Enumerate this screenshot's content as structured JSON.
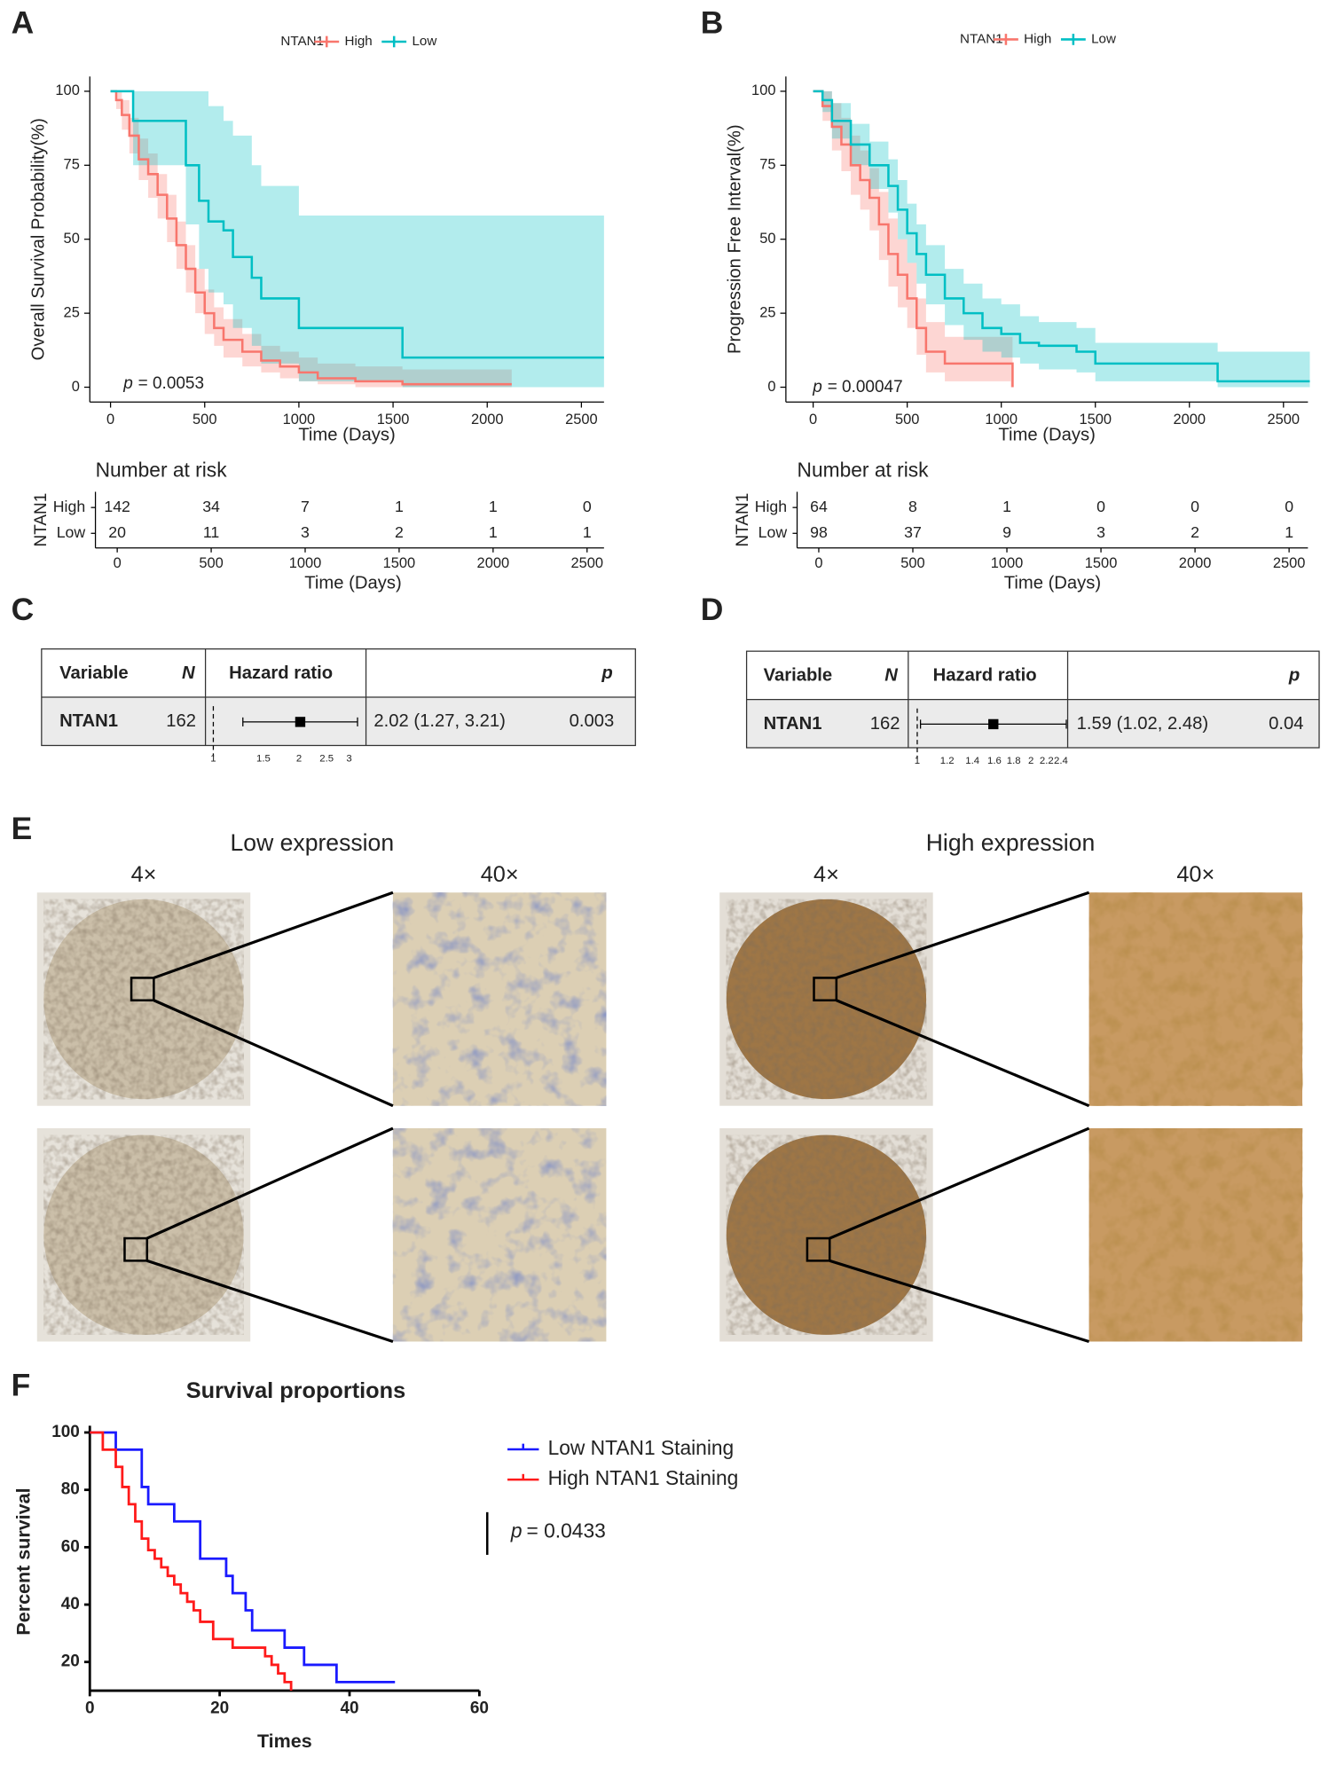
{
  "panel_labels": [
    "A",
    "B",
    "C",
    "D",
    "E",
    "F"
  ],
  "chart_data": [
    {
      "type": "step",
      "xlabel": "Time (Days)",
      "ylabel": "Overall Survival Probability(%)",
      "legend": "top",
      "legend_title": "NTAN1",
      "xlim": [
        -110,
        2620
      ],
      "ylim": [
        -5,
        105
      ],
      "xticks": [
        0,
        500,
        1000,
        1500,
        2000,
        2500
      ],
      "yticks": [
        0,
        25,
        50,
        75,
        100
      ],
      "annotation": {
        "symbol": "p",
        "text": "= 0.0053"
      },
      "series": [
        {
          "name": "High",
          "color": "#F8766D",
          "x": [
            0,
            30,
            60,
            100,
            150,
            200,
            250,
            300,
            350,
            400,
            450,
            500,
            550,
            600,
            700,
            800,
            900,
            1000,
            1100,
            1300,
            1550,
            2130
          ],
          "values": [
            100,
            97,
            92,
            85,
            77,
            72,
            65,
            57,
            48,
            40,
            32,
            25,
            20,
            16,
            12,
            9,
            7,
            5,
            3,
            2,
            1,
            1
          ],
          "ci_upper": [
            100,
            100,
            97,
            91,
            84,
            79,
            72,
            65,
            56,
            48,
            40,
            33,
            27,
            23,
            18,
            14,
            12,
            10,
            8,
            7,
            6,
            6
          ],
          "ci_lower": [
            100,
            94,
            87,
            79,
            70,
            64,
            57,
            49,
            40,
            32,
            25,
            18,
            14,
            10,
            7,
            5,
            3,
            2,
            1,
            0,
            0,
            0
          ]
        },
        {
          "name": "Low",
          "color": "#00BFC4",
          "x": [
            0,
            120,
            400,
            470,
            520,
            600,
            650,
            750,
            800,
            1000,
            1550,
            2620
          ],
          "values": [
            100,
            90,
            75,
            63,
            56,
            53,
            44,
            37,
            30,
            20,
            10,
            10
          ],
          "ci_upper": [
            100,
            100,
            100,
            100,
            95,
            90,
            85,
            75,
            68,
            58,
            58,
            58
          ],
          "ci_lower": [
            100,
            75,
            55,
            40,
            32,
            28,
            20,
            14,
            8,
            2,
            0,
            0
          ]
        }
      ],
      "risk_table": {
        "title": "Number at risk",
        "xlabel": "Time (Days)",
        "ylabel": "NTAN1",
        "times": [
          0,
          500,
          1000,
          1500,
          2000,
          2500
        ],
        "rows": [
          {
            "name": "High",
            "color": "#F8766D",
            "counts": [
              142,
              34,
              7,
              1,
              1,
              0
            ]
          },
          {
            "name": "Low",
            "color": "#00BFC4",
            "counts": [
              20,
              11,
              3,
              2,
              1,
              1
            ]
          }
        ]
      }
    },
    {
      "type": "step",
      "xlabel": "Time (Days)",
      "ylabel": "Progression Free Interval(%)",
      "legend": "top",
      "legend_title": "NTAN1",
      "xlim": [
        -145,
        2630
      ],
      "ylim": [
        -5,
        105
      ],
      "xticks": [
        0,
        500,
        1000,
        1500,
        2000,
        2500
      ],
      "yticks": [
        0,
        25,
        50,
        75,
        100
      ],
      "annotation": {
        "symbol": "p",
        "text": "= 0.00047"
      },
      "series": [
        {
          "name": "High",
          "color": "#F8766D",
          "x": [
            0,
            50,
            100,
            150,
            200,
            250,
            300,
            350,
            400,
            450,
            500,
            550,
            600,
            700,
            800,
            1050,
            1060
          ],
          "values": [
            100,
            95,
            88,
            82,
            75,
            70,
            64,
            55,
            45,
            38,
            30,
            20,
            12,
            8,
            8,
            8,
            0
          ],
          "ci_upper": [
            100,
            100,
            96,
            91,
            85,
            80,
            74,
            66,
            57,
            50,
            42,
            30,
            22,
            17,
            17,
            17,
            17
          ],
          "ci_lower": [
            100,
            90,
            80,
            73,
            65,
            60,
            53,
            43,
            34,
            27,
            20,
            11,
            5,
            2,
            2,
            0,
            0
          ]
        },
        {
          "name": "Low",
          "color": "#00BFC4",
          "x": [
            0,
            50,
            100,
            200,
            300,
            400,
            450,
            500,
            550,
            600,
            700,
            800,
            900,
            1000,
            1100,
            1200,
            1400,
            1500,
            2150,
            2640
          ],
          "values": [
            100,
            97,
            90,
            82,
            75,
            68,
            60,
            52,
            45,
            38,
            30,
            25,
            20,
            18,
            15,
            14,
            12,
            8,
            2,
            2
          ],
          "ci_upper": [
            100,
            100,
            96,
            89,
            83,
            77,
            70,
            62,
            55,
            48,
            40,
            35,
            30,
            28,
            24,
            22,
            20,
            15,
            12,
            12
          ],
          "ci_lower": [
            100,
            93,
            84,
            75,
            67,
            59,
            50,
            42,
            35,
            28,
            21,
            16,
            12,
            10,
            8,
            6,
            5,
            2,
            0,
            0
          ]
        }
      ],
      "risk_table": {
        "title": "Number at risk",
        "xlabel": "Time (Days)",
        "ylabel": "NTAN1",
        "times": [
          0,
          500,
          1000,
          1500,
          2000,
          2500
        ],
        "rows": [
          {
            "name": "High",
            "color": "#F8766D",
            "counts": [
              64,
              8,
              1,
              0,
              0,
              0
            ]
          },
          {
            "name": "Low",
            "color": "#00BFC4",
            "counts": [
              98,
              37,
              9,
              3,
              2,
              1
            ]
          }
        ]
      }
    },
    {
      "type": "step",
      "title": "Survival proportions",
      "xlabel": "Times",
      "ylabel": "Percent survival",
      "legend": "right",
      "xlim": [
        0,
        60
      ],
      "ylim": [
        10,
        100
      ],
      "xticks": [
        0,
        20,
        40,
        60
      ],
      "yticks": [
        20,
        40,
        60,
        80,
        100
      ],
      "annotation": {
        "symbol": "p",
        "text": "= 0.0433"
      },
      "series": [
        {
          "name": "Low NTAN1 Staining",
          "color": "#1a1aff",
          "x": [
            0,
            4,
            8,
            9,
            13,
            17,
            21,
            22,
            24,
            25,
            30,
            33,
            38,
            47
          ],
          "values": [
            100,
            94,
            81,
            75,
            69,
            56,
            50,
            44,
            38,
            31,
            25,
            19,
            13,
            13
          ]
        },
        {
          "name": "High NTAN1 Staining",
          "color": "#ff1a1a",
          "x": [
            0,
            2,
            4,
            5,
            6,
            7,
            8,
            9,
            10,
            11,
            12,
            13,
            14,
            15,
            16,
            17,
            19,
            22,
            27,
            28,
            29,
            30,
            31
          ],
          "values": [
            100,
            94,
            88,
            81,
            75,
            69,
            63,
            59,
            56,
            53,
            50,
            47,
            44,
            41,
            38,
            34,
            28,
            25,
            22,
            19,
            16,
            13,
            10
          ]
        }
      ]
    }
  ],
  "forest_plots": [
    {
      "headers": [
        "Variable",
        "N",
        "Hazard ratio",
        "p"
      ],
      "variable": "NTAN1",
      "n": 162,
      "hr": 2.02,
      "lower": 1.27,
      "upper": 3.21,
      "estimate_label": "2.02 (1.27, 3.21)",
      "p": 0.003,
      "log_scale": true,
      "xlim": [
        1,
        3
      ],
      "xticks": [
        1,
        1.5,
        2,
        2.5,
        3
      ]
    },
    {
      "headers": [
        "Variable",
        "N",
        "Hazard ratio",
        "p"
      ],
      "variable": "NTAN1",
      "n": 162,
      "hr": 1.59,
      "lower": 1.02,
      "upper": 2.48,
      "estimate_label": "1.59 (1.02, 2.48)",
      "p": 0.04,
      "log_scale": true,
      "xlim": [
        1,
        2.4
      ],
      "xticks": [
        1,
        1.2,
        1.4,
        1.6,
        1.8,
        2,
        2.2,
        2.4
      ]
    }
  ],
  "ihc": {
    "groups": [
      {
        "title": "Low expression",
        "magnifications": [
          "4×",
          "40×"
        ]
      },
      {
        "title": "High expression",
        "magnifications": [
          "4×",
          "40×"
        ]
      }
    ]
  }
}
